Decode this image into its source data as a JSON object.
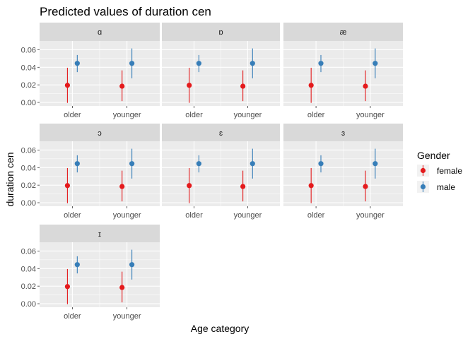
{
  "chart_data": {
    "type": "scatter",
    "title": "Predicted values of duration cen",
    "xlabel": "Age category",
    "ylabel": "duration cen",
    "categories": [
      "older",
      "younger"
    ],
    "ylim": [
      -0.004,
      0.07
    ],
    "yticks": [
      "0.00",
      "0.02",
      "0.04",
      "0.06"
    ],
    "yticks_values": [
      0.0,
      0.02,
      0.04,
      0.06
    ],
    "legend": {
      "title": "Gender",
      "position": "right"
    },
    "colors": {
      "female": "#e41a1c",
      "male": "#377eb8",
      "panel_bg": "#ebebeb",
      "strip_bg": "#d9d9d9",
      "grid": "#ffffff"
    },
    "panels": [
      {
        "label": "ɑ"
      },
      {
        "label": "ɒ"
      },
      {
        "label": "æ"
      },
      {
        "label": "ɔ"
      },
      {
        "label": "ɛ"
      },
      {
        "label": "ɜ"
      },
      {
        "label": "ɪ"
      }
    ],
    "series": [
      {
        "name": "female",
        "values": [
          0.0195,
          0.0185
        ],
        "lower": [
          -0.0005,
          0.0015
        ],
        "upper": [
          0.0395,
          0.0365
        ]
      },
      {
        "name": "male",
        "values": [
          0.0445,
          0.0445
        ],
        "lower": [
          0.0345,
          0.0275
        ],
        "upper": [
          0.054,
          0.0615
        ]
      }
    ]
  }
}
